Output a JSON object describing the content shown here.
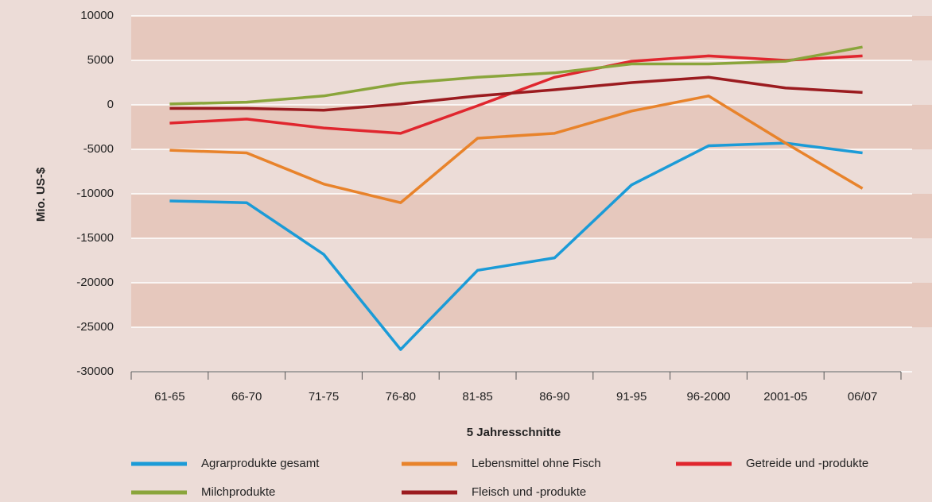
{
  "chart_data": {
    "type": "line",
    "y_label": "Mio. US-$",
    "x_label": "5 Jahresschnitte",
    "categories": [
      "61-65",
      "66-70",
      "71-75",
      "76-80",
      "81-85",
      "86-90",
      "91-95",
      "96-2000",
      "2001-05",
      "06/07"
    ],
    "series": [
      {
        "name": "Agrarprodukte gesamt",
        "color": "#1b9bd7",
        "values": [
          -10800,
          -11000,
          -16800,
          -27500,
          -18600,
          -17200,
          -9000,
          -4600,
          -4300,
          -5400
        ]
      },
      {
        "name": "Lebensmittel ohne Fisch",
        "color": "#e8832b",
        "values": [
          -5100,
          -5400,
          -8900,
          -11000,
          -3750,
          -3200,
          -700,
          1000,
          -4300,
          -9400
        ]
      },
      {
        "name": "Getreide und -produkte",
        "color": "#e0262e",
        "values": [
          -2050,
          -1600,
          -2600,
          -3200,
          -100,
          3100,
          4900,
          5500,
          5000,
          5500
        ]
      },
      {
        "name": "Milchprodukte",
        "color": "#8aa53b",
        "values": [
          100,
          300,
          1000,
          2400,
          3100,
          3600,
          4600,
          4600,
          4900,
          6500
        ]
      },
      {
        "name": "Fleisch und -produkte",
        "color": "#9b1b1f",
        "values": [
          -400,
          -400,
          -600,
          100,
          1000,
          1700,
          2500,
          3100,
          1900,
          1400
        ]
      }
    ],
    "ylim": [
      -30000,
      10000
    ],
    "yticks": [
      -30000,
      -25000,
      -20000,
      -15000,
      -10000,
      -5000,
      0,
      5000,
      10000
    ],
    "grid": true
  }
}
